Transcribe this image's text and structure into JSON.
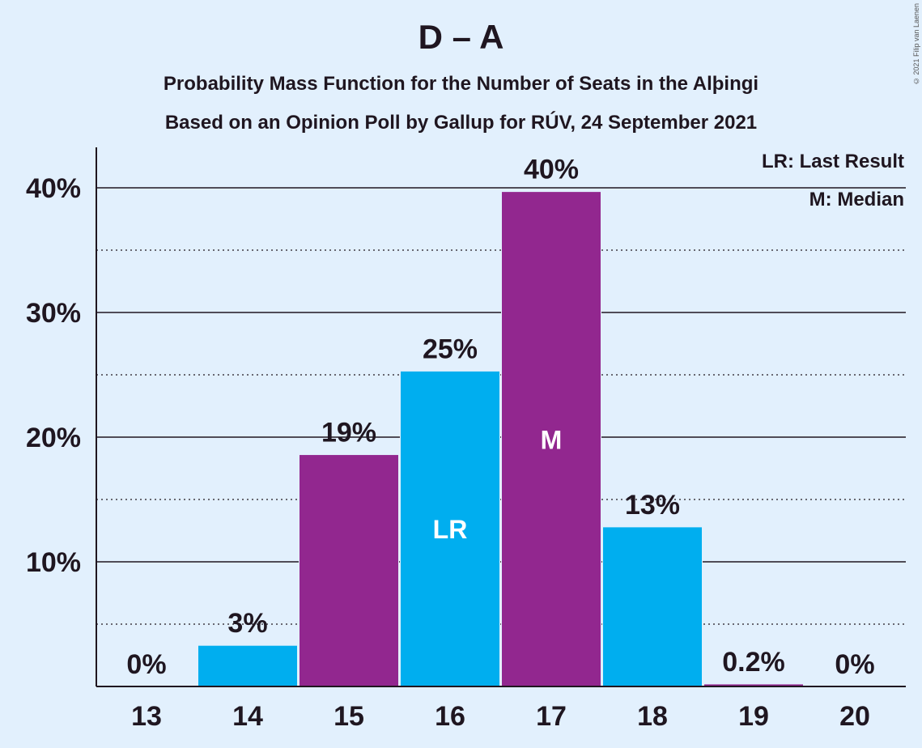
{
  "chart_data": {
    "type": "bar",
    "title": "D – A",
    "subtitle_lines": [
      "Probability Mass Function for the Number of Seats in the Alþingi",
      "Based on an Opinion Poll by Gallup for RÚV, 24 September 2021"
    ],
    "copyright": "© 2021 Filip van Laenen",
    "legend": {
      "placement": "top-right",
      "lines": [
        "LR: Last Result",
        "M: Median"
      ]
    },
    "categories": [
      "13",
      "14",
      "15",
      "16",
      "17",
      "18",
      "19",
      "20"
    ],
    "values": [
      0,
      3.3,
      18.6,
      25.3,
      39.7,
      12.8,
      0.2,
      0
    ],
    "value_labels": [
      "0%",
      "3%",
      "19%",
      "25%",
      "40%",
      "13%",
      "0.2%",
      "0%"
    ],
    "bar_colors": [
      "#00aeef",
      "#00aeef",
      "#92278f",
      "#00aeef",
      "#92278f",
      "#00aeef",
      "#92278f",
      "#00aeef"
    ],
    "inner_labels": {
      "16": "LR",
      "17": "M"
    },
    "ylim": [
      0,
      43
    ],
    "yticks": [
      10,
      20,
      30,
      40
    ],
    "ytick_labels": [
      "10%",
      "20%",
      "30%",
      "40%"
    ],
    "minor_gridlines": [
      5,
      15,
      25,
      35
    ],
    "grid": true,
    "colors": {
      "background": "#e2f0fd",
      "cyan": "#00aeef",
      "purple": "#92278f",
      "text": "#1f1620"
    }
  }
}
